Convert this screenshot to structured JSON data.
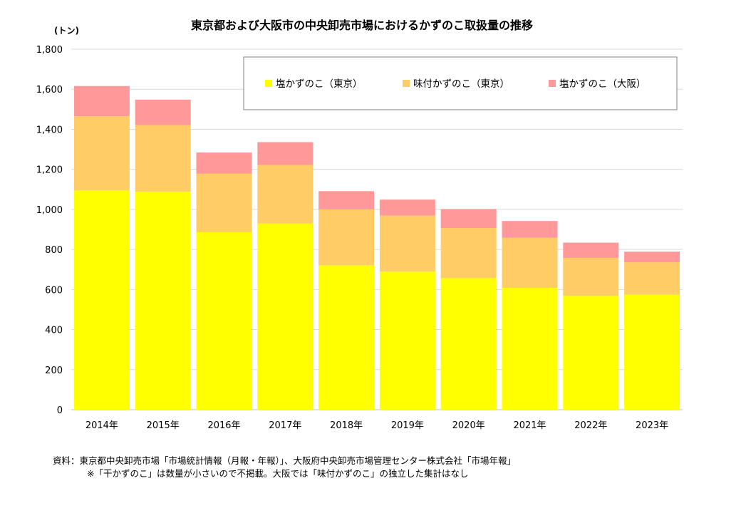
{
  "chart_data": {
    "type": "bar",
    "stacked": true,
    "title": "東京都および大阪市の中央卸売市場におけるかずのこ取扱量の推移",
    "ylabel": "(トン)",
    "xlabel": "",
    "ylim": [
      0,
      1800
    ],
    "yticks": [
      0,
      200,
      400,
      600,
      800,
      1000,
      1200,
      1400,
      1600,
      1800
    ],
    "ytick_labels": [
      "0",
      "200",
      "400",
      "600",
      "800",
      "1,000",
      "1,200",
      "1,400",
      "1,600",
      "1,800"
    ],
    "grid": true,
    "legend_position": "top-right",
    "categories": [
      "2014年",
      "2015年",
      "2016年",
      "2017年",
      "2018年",
      "2019年",
      "2020年",
      "2021年",
      "2022年",
      "2023年"
    ],
    "series": [
      {
        "name": "塩かずのこ（東京）",
        "color": "#FFFF00",
        "values": [
          1095,
          1088,
          886,
          930,
          721,
          690,
          657,
          608,
          568,
          574
        ]
      },
      {
        "name": "味付かずのこ（東京）",
        "color": "#FFCC66",
        "values": [
          370,
          333,
          292,
          292,
          279,
          279,
          250,
          250,
          190,
          162
        ]
      },
      {
        "name": "塩かずのこ（大阪）",
        "color": "#FF9999",
        "values": [
          151,
          127,
          106,
          114,
          91,
          80,
          95,
          84,
          76,
          53
        ]
      }
    ]
  },
  "source": {
    "line1": "資料：東京都中央卸売市場「市場統計情報（月報・年報）」、大阪府中央卸売市場管理センター株式会社「市場年報」",
    "line2": "※「干かずのこ」は数量が小さいので不掲載。大阪では「味付かずのこ」の独立した集計はなし"
  }
}
